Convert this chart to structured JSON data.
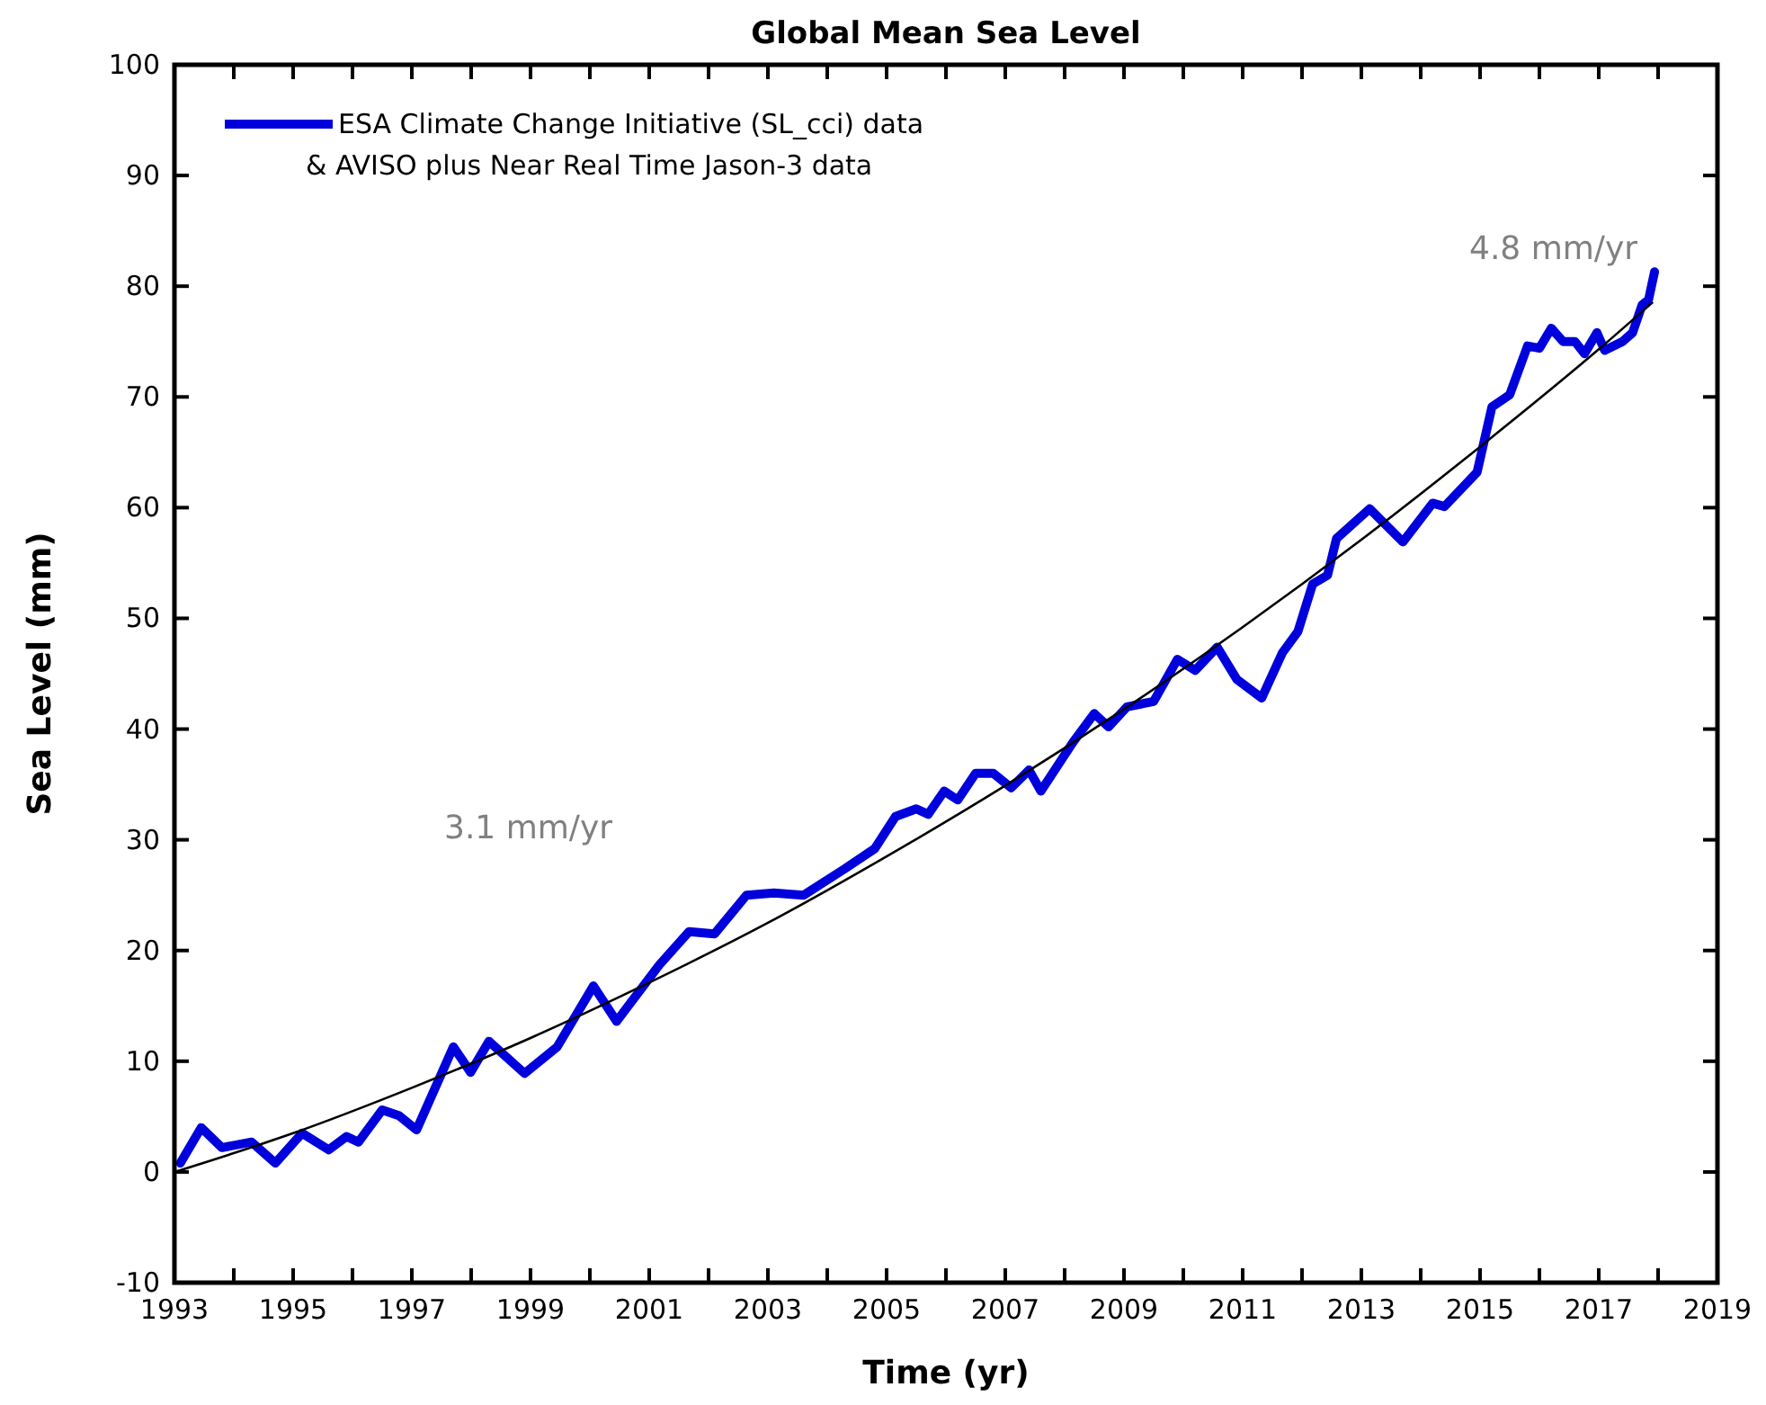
{
  "chart_data": {
    "type": "line",
    "title": "Global Mean Sea Level",
    "xlabel": "Time (yr)",
    "ylabel": "Sea Level (mm)",
    "annotations": [
      "3.1 mm/yr",
      "4.8 mm/yr"
    ],
    "xlim": [
      1993,
      2019
    ],
    "ylim": [
      -10,
      100
    ],
    "xticks": [
      1993,
      {
        "value": 1994,
        "label": null
      },
      1995,
      {
        "value": 1996,
        "label": null
      },
      1997,
      {
        "value": 1998,
        "label": null
      },
      1999,
      {
        "value": 2000,
        "label": null
      },
      2001,
      {
        "value": 2002,
        "label": null
      },
      2003,
      {
        "value": 2004,
        "label": null
      },
      2005,
      {
        "value": 2006,
        "label": null
      },
      2007,
      {
        "value": 2008,
        "label": null
      },
      2009,
      {
        "value": 2010,
        "label": null
      },
      2011,
      {
        "value": 2012,
        "label": null
      },
      2013,
      {
        "value": 2014,
        "label": null
      },
      2015,
      {
        "value": 2016,
        "label": null
      },
      2017,
      {
        "value": 2018,
        "label": null
      },
      2019
    ],
    "yticks": [
      -10,
      0,
      10,
      20,
      30,
      40,
      50,
      60,
      70,
      80,
      90,
      100
    ],
    "grid": false,
    "legend": "top left",
    "marker": "none",
    "line_style": "solid",
    "series": [
      {
        "name": "ESA Climate Change Initiative (SL_cci) data\n& AVISO plus Near Real Time Jason-3 data",
        "color": "#0000dd",
        "x": [
          1993.1,
          1993.45,
          1993.8,
          1994.3,
          1994.7,
          1995.15,
          1995.6,
          1995.9,
          1996.1,
          1996.5,
          1996.78,
          1997.08,
          1997.7,
          1997.99,
          1998.3,
          1998.9,
          1999.45,
          2000.06,
          2000.45,
          2001.17,
          2001.67,
          2002.1,
          2002.64,
          2003.1,
          2003.6,
          2004.3,
          2004.8,
          2005.15,
          2005.5,
          2005.7,
          2005.97,
          2006.2,
          2006.5,
          2006.8,
          2007.1,
          2007.4,
          2007.6,
          2008.14,
          2008.5,
          2008.74,
          2009.05,
          2009.5,
          2009.9,
          2010.2,
          2010.57,
          2010.9,
          2011.32,
          2011.67,
          2011.93,
          2012.18,
          2012.43,
          2012.58,
          2013.14,
          2013.7,
          2014.2,
          2014.4,
          2014.95,
          2015.2,
          2015.5,
          2015.8,
          2016.0,
          2016.2,
          2016.4,
          2016.6,
          2016.76,
          2016.97,
          2017.1,
          2017.4,
          2017.57,
          2017.73,
          2017.84,
          2017.94
        ],
        "values": [
          0.8,
          4.0,
          2.2,
          2.7,
          0.8,
          3.5,
          2.0,
          3.2,
          2.7,
          5.6,
          5.1,
          3.8,
          11.3,
          9.0,
          11.8,
          8.9,
          11.3,
          16.8,
          13.6,
          18.7,
          21.7,
          21.5,
          25.0,
          25.2,
          25.0,
          27.4,
          29.2,
          32.1,
          32.8,
          32.3,
          34.4,
          33.6,
          36.0,
          36.0,
          34.7,
          36.3,
          34.4,
          38.8,
          41.4,
          40.2,
          42.0,
          42.5,
          46.3,
          45.3,
          47.4,
          44.5,
          42.8,
          46.9,
          48.8,
          53.1,
          53.9,
          57.2,
          59.9,
          56.9,
          60.4,
          60.1,
          63.2,
          69.1,
          70.2,
          74.6,
          74.4,
          76.2,
          75.0,
          75.0,
          73.9,
          75.8,
          74.2,
          75.0,
          75.8,
          78.3,
          78.8,
          81.3
        ]
      },
      {
        "color": "#000000",
        "x": [
          1993,
          1995,
          1997,
          1999,
          2001,
          2003,
          2005,
          2007,
          2009,
          2011,
          2013,
          2015,
          2017,
          2017.9
        ],
        "values": [
          0,
          3.5,
          7.6,
          12.1,
          17.1,
          22.5,
          28.5,
          34.9,
          41.8,
          49.2,
          57.1,
          65.5,
          74.3,
          78.5
        ]
      }
    ]
  }
}
